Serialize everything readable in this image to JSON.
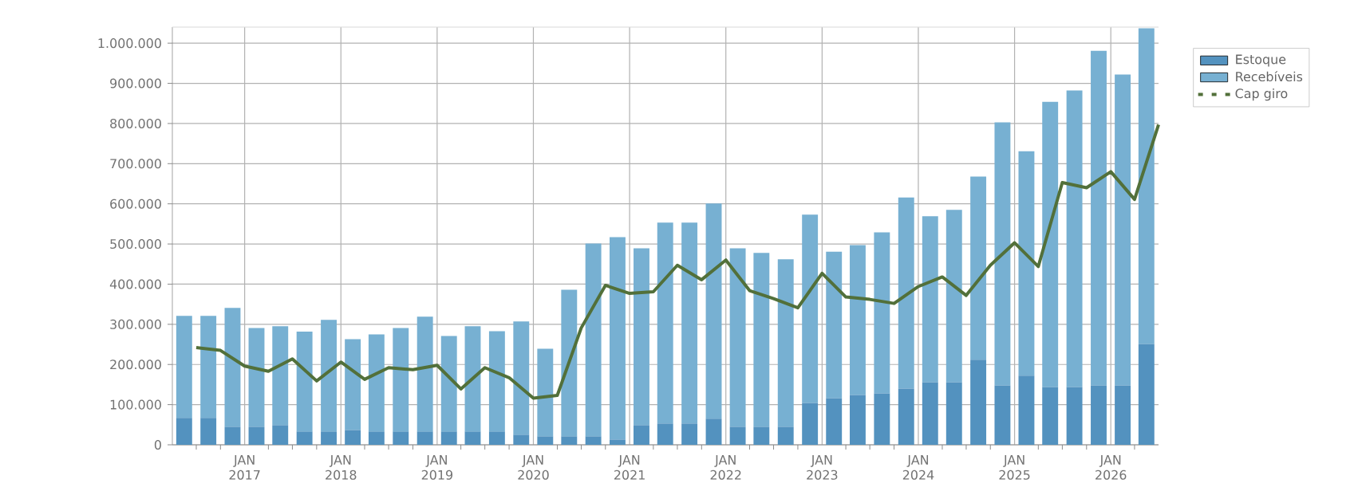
{
  "chart_data": {
    "type": "bar",
    "stacked": true,
    "xlim": [
      "2016-04",
      "2026-07"
    ],
    "xticks": [
      {
        "value": "2016-07",
        "label": null
      },
      {
        "value": "2016-10",
        "label": null
      },
      {
        "value": "2017-01",
        "label": "JAN 2017"
      },
      {
        "value": "2017-04",
        "label": null
      },
      {
        "value": "2017-07",
        "label": null
      },
      {
        "value": "2017-10",
        "label": null
      },
      {
        "value": "2018-01",
        "label": "JAN 2018"
      },
      {
        "value": "2018-04",
        "label": null
      },
      {
        "value": "2018-07",
        "label": null
      },
      {
        "value": "2018-10",
        "label": null
      },
      {
        "value": "2019-01",
        "label": "JAN 2019"
      },
      {
        "value": "2019-04",
        "label": null
      },
      {
        "value": "2019-07",
        "label": null
      },
      {
        "value": "2019-10",
        "label": null
      },
      {
        "value": "2020-01",
        "label": "JAN 2020"
      },
      {
        "value": "2020-04",
        "label": null
      },
      {
        "value": "2020-07",
        "label": null
      },
      {
        "value": "2020-10",
        "label": null
      },
      {
        "value": "2021-01",
        "label": "JAN 2021"
      },
      {
        "value": "2021-04",
        "label": null
      },
      {
        "value": "2021-07",
        "label": null
      },
      {
        "value": "2021-10",
        "label": null
      },
      {
        "value": "2022-01",
        "label": "JAN 2022"
      },
      {
        "value": "2022-04",
        "label": null
      },
      {
        "value": "2022-07",
        "label": null
      },
      {
        "value": "2022-10",
        "label": null
      },
      {
        "value": "2023-01",
        "label": "JAN 2023"
      },
      {
        "value": "2023-04",
        "label": null
      },
      {
        "value": "2023-07",
        "label": null
      },
      {
        "value": "2023-10",
        "label": null
      },
      {
        "value": "2024-01",
        "label": "JAN 2024"
      },
      {
        "value": "2024-04",
        "label": null
      },
      {
        "value": "2024-07",
        "label": null
      },
      {
        "value": "2024-10",
        "label": null
      },
      {
        "value": "2025-01",
        "label": "JAN 2025"
      },
      {
        "value": "2025-04",
        "label": null
      },
      {
        "value": "2025-07",
        "label": null
      },
      {
        "value": "2025-10",
        "label": null
      },
      {
        "value": "2026-01",
        "label": "JAN 2026"
      },
      {
        "value": "2026-04",
        "label": null
      }
    ],
    "ylim": [
      0,
      1040000
    ],
    "yticks": [
      0,
      {
        "value": 100000,
        "label": "100.000"
      },
      {
        "value": 200000,
        "label": "200.000"
      },
      {
        "value": 300000,
        "label": "300.000"
      },
      {
        "value": 400000,
        "label": "400.000"
      },
      {
        "value": 500000,
        "label": "500.000"
      },
      {
        "value": 600000,
        "label": "600.000"
      },
      {
        "value": 700000,
        "label": "700.000"
      },
      {
        "value": 800000,
        "label": "800.000"
      },
      {
        "value": 900000,
        "label": "900.000"
      },
      {
        "value": 1000000,
        "label": "1.000.000"
      }
    ],
    "x": [
      "2016-05-16",
      "2016-08-16",
      "2016-11-16",
      "2017-02-15",
      "2017-05-16",
      "2017-08-16",
      "2017-11-16",
      "2018-02-15",
      "2018-05-16",
      "2018-08-16",
      "2018-11-16",
      "2019-02-15",
      "2019-05-16",
      "2019-08-16",
      "2019-11-16",
      "2020-02-15",
      "2020-05-16",
      "2020-08-16",
      "2020-11-16",
      "2021-02-15",
      "2021-05-16",
      "2021-08-16",
      "2021-11-16",
      "2022-02-15",
      "2022-05-16",
      "2022-08-16",
      "2022-11-16",
      "2023-02-15",
      "2023-05-16",
      "2023-08-16",
      "2023-11-16",
      "2024-02-15",
      "2024-05-16",
      "2024-08-16",
      "2024-11-16",
      "2025-02-15",
      "2025-05-16",
      "2025-08-16",
      "2025-11-16",
      "2026-02-15",
      "2026-05-16"
    ],
    "series": [
      {
        "name": "Estoque",
        "color": "#5392bf",
        "values": [
          67000,
          67000,
          45000,
          45000,
          49000,
          33000,
          33000,
          37000,
          33000,
          33000,
          33000,
          33000,
          33000,
          33000,
          25000,
          21000,
          21000,
          21000,
          13000,
          49000,
          53000,
          53000,
          65000,
          45000,
          45000,
          45000,
          104000,
          116000,
          124000,
          128000,
          140000,
          156000,
          156000,
          212000,
          148000,
          172000,
          144000,
          144000,
          148000,
          148000,
          251000
        ]
      },
      {
        "name": "Recebíveis",
        "color": "#77b0d2",
        "values": [
          254000,
          254000,
          296000,
          246000,
          246000,
          249000,
          278000,
          226000,
          242000,
          258000,
          286000,
          238000,
          262000,
          250000,
          282000,
          218000,
          365000,
          480000,
          504000,
          440000,
          500000,
          500000,
          536000,
          444000,
          433000,
          417000,
          469000,
          365000,
          373000,
          401000,
          476000,
          413000,
          429000,
          456000,
          655000,
          559000,
          710000,
          738000,
          833000,
          774000,
          786000
        ]
      },
      {
        "name": "Cap giro",
        "type": "line",
        "color": "#52703a",
        "x": [
          "2016-07",
          "2016-10",
          "2017-01",
          "2017-04",
          "2017-07",
          "2017-10",
          "2018-01",
          "2018-04",
          "2018-07",
          "2018-10",
          "2019-01",
          "2019-04",
          "2019-07",
          "2019-10",
          "2020-01",
          "2020-04",
          "2020-07",
          "2020-10",
          "2021-01",
          "2021-04",
          "2021-07",
          "2021-10",
          "2022-01",
          "2022-04",
          "2022-07",
          "2022-10",
          "2023-01",
          "2023-04",
          "2023-07",
          "2023-10",
          "2024-01",
          "2024-04",
          "2024-07",
          "2024-10",
          "2025-01",
          "2025-04",
          "2025-07",
          "2025-10",
          "2026-01",
          "2026-04",
          "2026-07"
        ],
        "values": [
          242000,
          235000,
          196000,
          183000,
          214000,
          159000,
          206000,
          163000,
          192000,
          187000,
          198000,
          139000,
          192000,
          167000,
          116000,
          123000,
          291000,
          397000,
          377000,
          381000,
          447000,
          411000,
          460000,
          384000,
          364000,
          341000,
          427000,
          368000,
          362000,
          352000,
          394000,
          418000,
          372000,
          447000,
          503000,
          444000,
          653000,
          640000,
          680000,
          611000,
          797000
        ]
      }
    ],
    "grid": true,
    "legend": "top right"
  }
}
